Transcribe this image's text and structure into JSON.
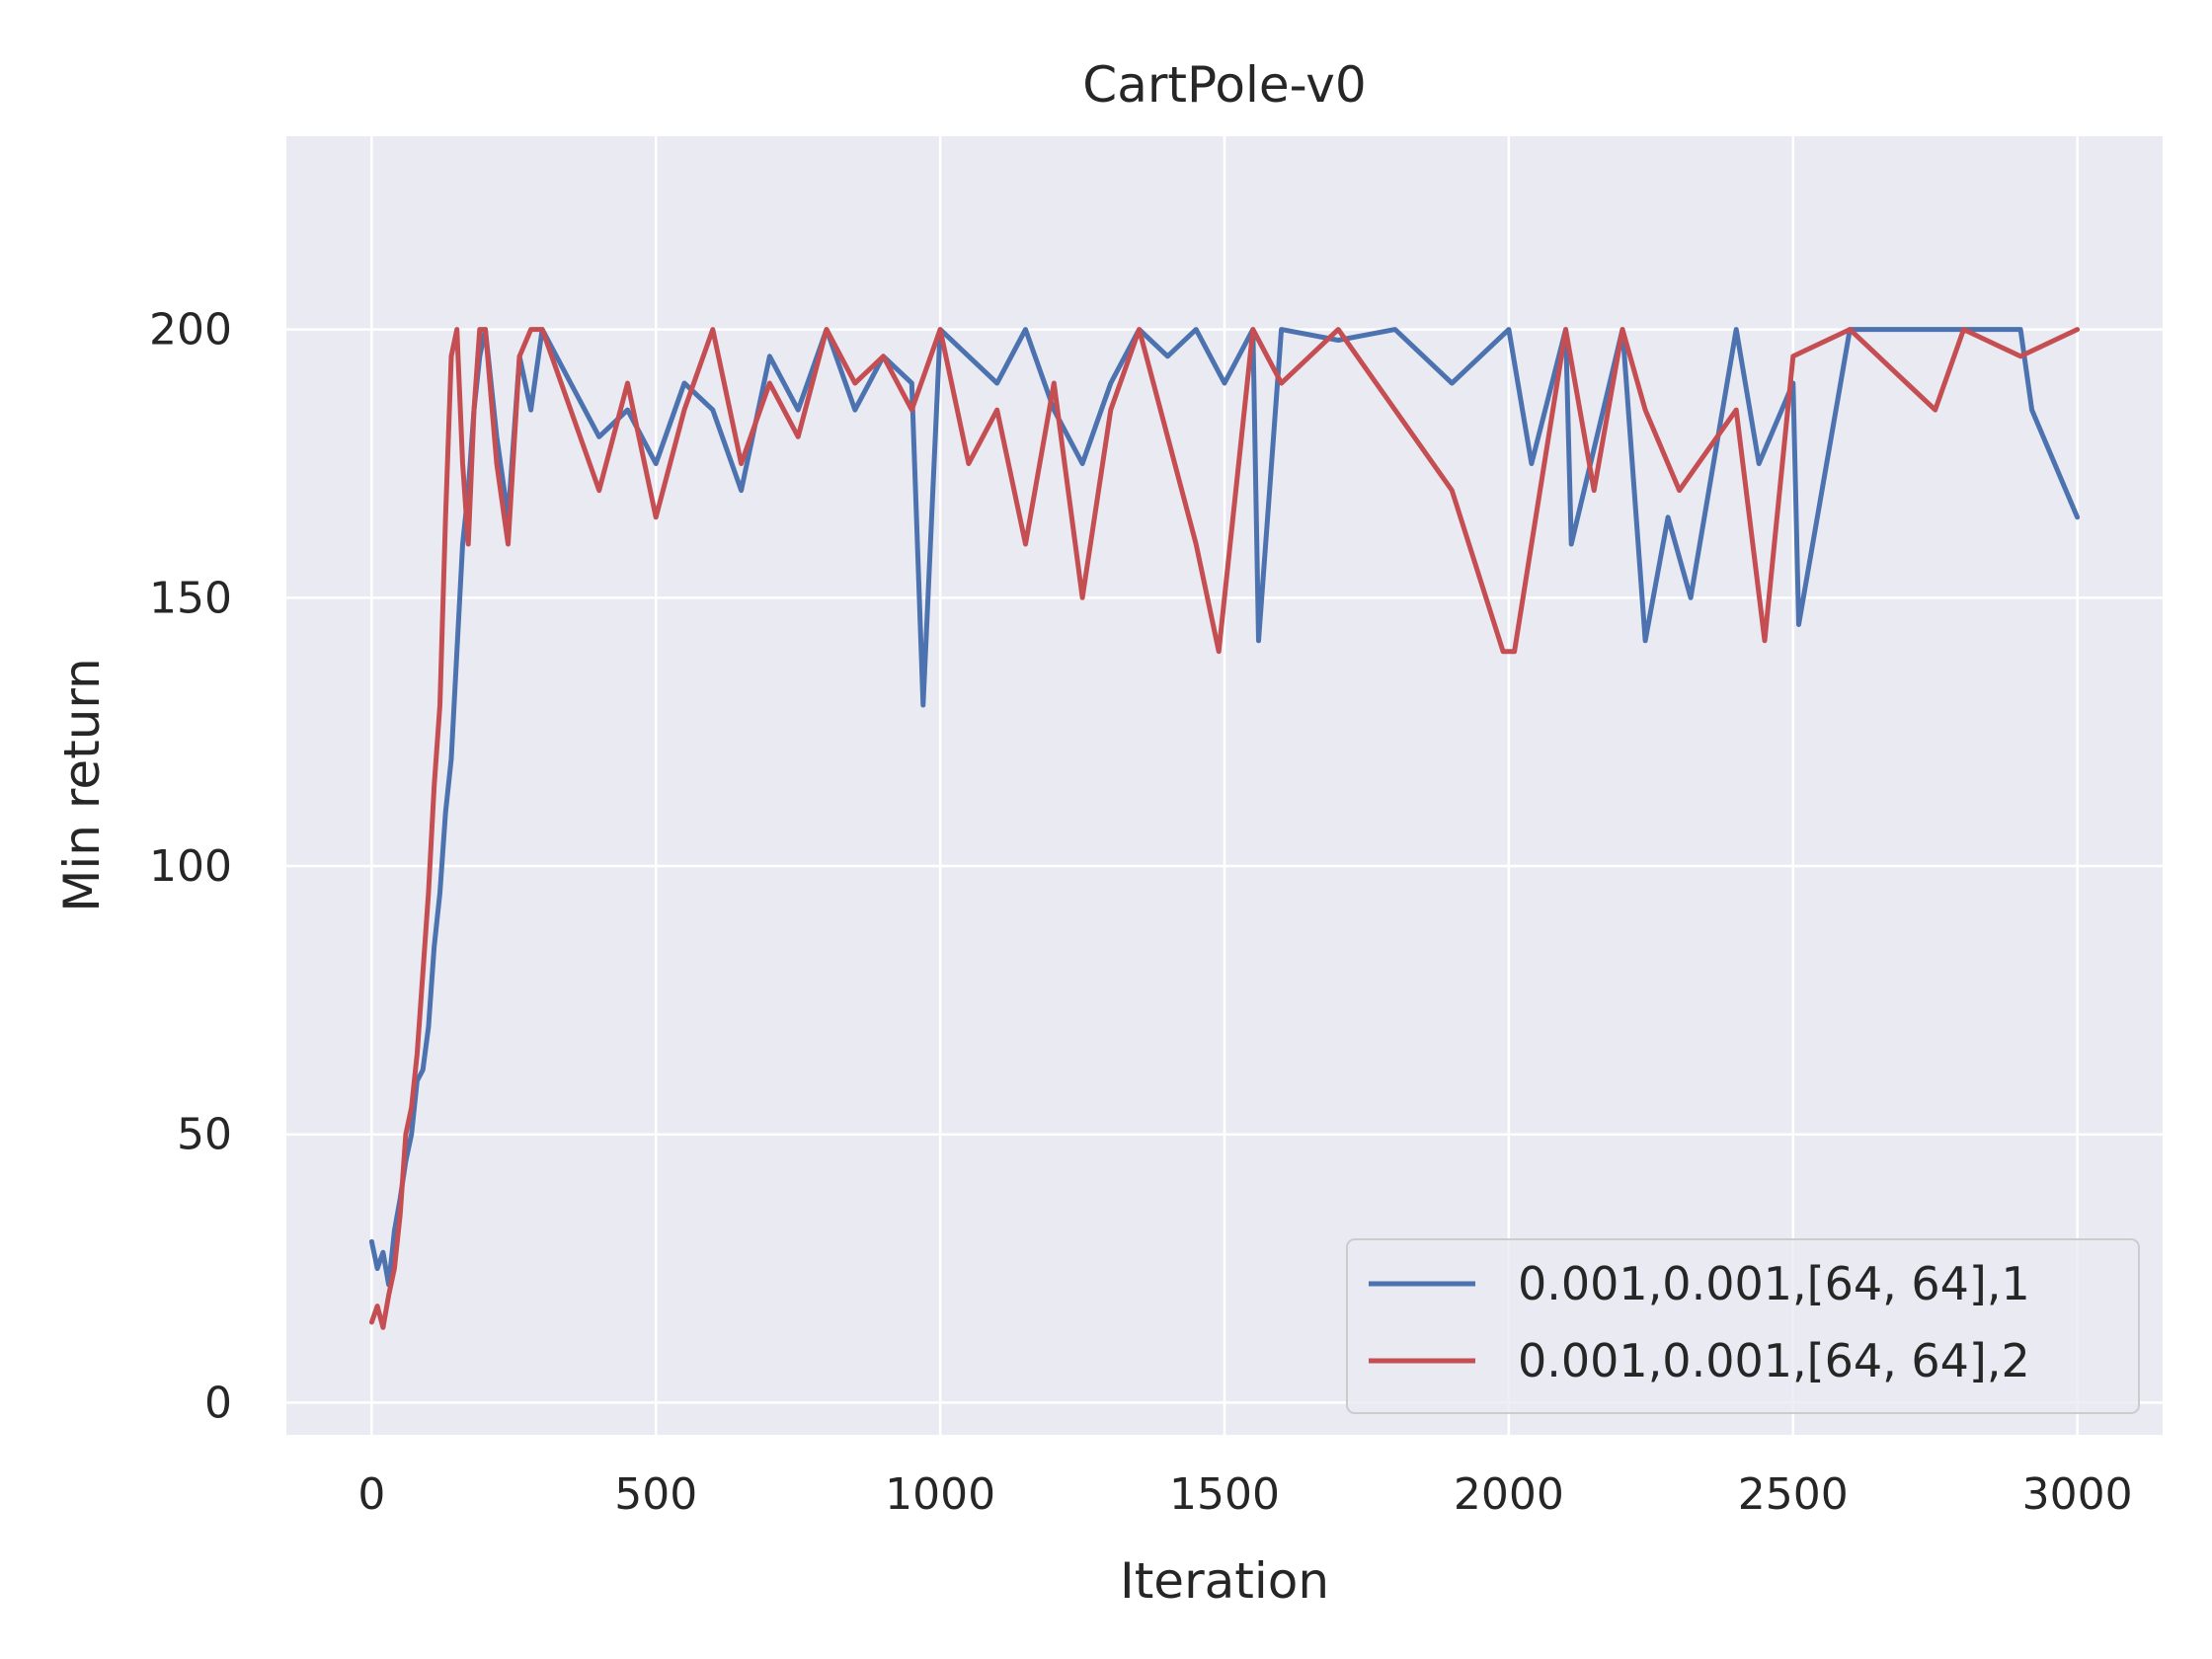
{
  "chart_data": {
    "type": "line",
    "title": "CartPole-v0",
    "xlabel": "Iteration",
    "ylabel": "Min return",
    "xlim": [
      -150,
      3150
    ],
    "ylim": [
      -6,
      236
    ],
    "xticks": [
      0,
      500,
      1000,
      1500,
      2000,
      2500,
      3000
    ],
    "yticks": [
      0,
      50,
      100,
      150,
      200
    ],
    "grid": true,
    "legend_position": "lower-right",
    "series": [
      {
        "name": "0.001,0.001,[64, 64],1",
        "color": "#4c72b0",
        "x": [
          0,
          10,
          20,
          30,
          40,
          50,
          60,
          70,
          80,
          90,
          100,
          110,
          120,
          130,
          140,
          150,
          160,
          170,
          180,
          190,
          200,
          220,
          240,
          260,
          280,
          300,
          350,
          400,
          450,
          500,
          550,
          600,
          650,
          700,
          750,
          800,
          850,
          900,
          950,
          970,
          1000,
          1050,
          1100,
          1150,
          1200,
          1250,
          1300,
          1350,
          1400,
          1450,
          1500,
          1550,
          1560,
          1600,
          1700,
          1800,
          1900,
          2000,
          2040,
          2100,
          2110,
          2200,
          2240,
          2280,
          2320,
          2400,
          2440,
          2500,
          2510,
          2600,
          2700,
          2800,
          2900,
          2920,
          3000
        ],
        "y": [
          30,
          25,
          28,
          22,
          32,
          38,
          45,
          50,
          60,
          62,
          70,
          85,
          95,
          110,
          120,
          140,
          160,
          170,
          185,
          195,
          200,
          180,
          165,
          195,
          185,
          200,
          190,
          180,
          185,
          175,
          190,
          185,
          170,
          195,
          185,
          200,
          185,
          195,
          190,
          130,
          200,
          195,
          190,
          200,
          185,
          175,
          190,
          200,
          195,
          200,
          190,
          200,
          142,
          200,
          198,
          200,
          190,
          200,
          175,
          200,
          160,
          200,
          142,
          165,
          150,
          200,
          175,
          190,
          145,
          200,
          200,
          200,
          200,
          185,
          165
        ]
      },
      {
        "name": "0.001,0.001,[64, 64],2",
        "color": "#c44e52",
        "x": [
          0,
          10,
          20,
          30,
          40,
          50,
          60,
          70,
          80,
          90,
          100,
          110,
          120,
          130,
          140,
          150,
          160,
          170,
          180,
          190,
          200,
          220,
          240,
          260,
          280,
          300,
          350,
          400,
          450,
          500,
          550,
          600,
          650,
          700,
          750,
          800,
          850,
          900,
          950,
          1000,
          1050,
          1100,
          1150,
          1200,
          1250,
          1300,
          1350,
          1400,
          1450,
          1490,
          1550,
          1600,
          1700,
          1800,
          1900,
          1990,
          2010,
          2100,
          2150,
          2200,
          2240,
          2300,
          2400,
          2450,
          2500,
          2600,
          2700,
          2750,
          2800,
          2900,
          3000
        ],
        "y": [
          15,
          18,
          14,
          20,
          25,
          35,
          50,
          55,
          65,
          80,
          95,
          115,
          130,
          165,
          195,
          200,
          175,
          160,
          185,
          200,
          200,
          175,
          160,
          195,
          200,
          200,
          185,
          170,
          190,
          165,
          185,
          200,
          175,
          190,
          180,
          200,
          190,
          195,
          185,
          200,
          175,
          185,
          160,
          190,
          150,
          185,
          200,
          180,
          160,
          140,
          200,
          190,
          200,
          185,
          170,
          140,
          140,
          200,
          170,
          200,
          185,
          170,
          185,
          142,
          195,
          200,
          190,
          185,
          200,
          195,
          200
        ]
      }
    ]
  }
}
